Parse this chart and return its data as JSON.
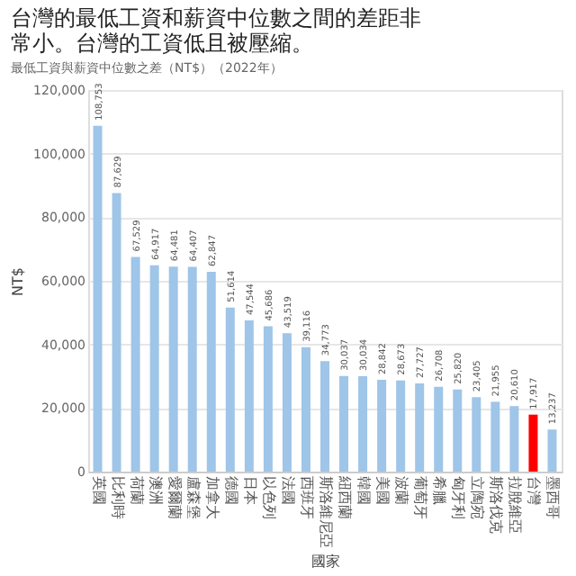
{
  "chart_data": {
    "type": "bar",
    "title": [
      "台灣的最低工資和薪資中位數之間的差距非",
      "常小。台灣的工資低且被壓縮。"
    ],
    "subtitle": "最低工資與薪資中位數之差（NT$）（2022年）",
    "xlabel": "國家",
    "ylabel": "NT$",
    "categories": [
      "英國",
      "比利時",
      "荷蘭",
      "澳洲",
      "愛爾蘭",
      "盧森堡",
      "加拿大",
      "德國",
      "日本",
      "以色列",
      "法國",
      "西班牙",
      "斯洛維尼亞",
      "紐西蘭",
      "韓國",
      "美國",
      "波蘭",
      "葡萄牙",
      "希臘",
      "匈牙利",
      "立陶宛",
      "斯洛伐克",
      "拉脫維亞",
      "台灣",
      "墨西哥"
    ],
    "values": [
      108753,
      87629,
      67529,
      64917,
      64481,
      64407,
      62847,
      51614,
      47544,
      45686,
      43519,
      39116,
      34773,
      30037,
      30034,
      28842,
      28673,
      27727,
      26708,
      25820,
      23405,
      21955,
      20610,
      17917,
      13237
    ],
    "colors": [
      "#9fc5e8",
      "#9fc5e8",
      "#9fc5e8",
      "#9fc5e8",
      "#9fc5e8",
      "#9fc5e8",
      "#9fc5e8",
      "#9fc5e8",
      "#9fc5e8",
      "#9fc5e8",
      "#9fc5e8",
      "#9fc5e8",
      "#9fc5e8",
      "#9fc5e8",
      "#9fc5e8",
      "#9fc5e8",
      "#9fc5e8",
      "#9fc5e8",
      "#9fc5e8",
      "#9fc5e8",
      "#9fc5e8",
      "#9fc5e8",
      "#9fc5e8",
      "#ff0000",
      "#9fc5e8"
    ],
    "value_labels": [
      "108,753",
      "87,629",
      "67,529",
      "64,917",
      "64,481",
      "64,407",
      "62,847",
      "51,614",
      "47,544",
      "45,686",
      "43,519",
      "39,116",
      "34,773",
      "30,037",
      "30,034",
      "28,842",
      "28,673",
      "27,727",
      "26,708",
      "25,820",
      "23,405",
      "21,955",
      "20,610",
      "17,917",
      "13,237"
    ],
    "ylim": [
      0,
      120000
    ],
    "yticks": [
      0,
      {
        "value": 20000,
        "label": "20,000"
      },
      {
        "value": 40000,
        "label": "40,000"
      },
      {
        "value": 60000,
        "label": "60,000"
      },
      {
        "value": 80000,
        "label": "80,000"
      },
      {
        "value": 100000,
        "label": "100,000"
      },
      {
        "value": 120000,
        "label": "120,000"
      }
    ],
    "grid": "y"
  }
}
